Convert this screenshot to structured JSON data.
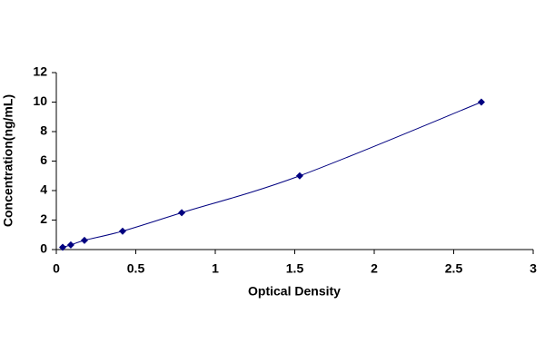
{
  "chart_data": {
    "type": "scatter",
    "x_label": "Optical Density",
    "y_label": "Concentration(ng/mL)",
    "series": [
      {
        "color": "#000080",
        "x": [
          0.04,
          0.091,
          0.177,
          0.417,
          0.789,
          1.531,
          2.674
        ],
        "values": [
          0.156,
          0.3125,
          0.625,
          1.25,
          2.5,
          5,
          10
        ]
      }
    ],
    "xlim": [
      0,
      3
    ],
    "xticks": [
      0,
      0.5,
      1,
      1.5,
      2,
      2.5,
      3
    ],
    "ylim": [
      0,
      12
    ],
    "yticks": [
      0,
      2,
      4,
      6,
      8,
      10,
      12
    ],
    "grid": false,
    "line": true
  }
}
